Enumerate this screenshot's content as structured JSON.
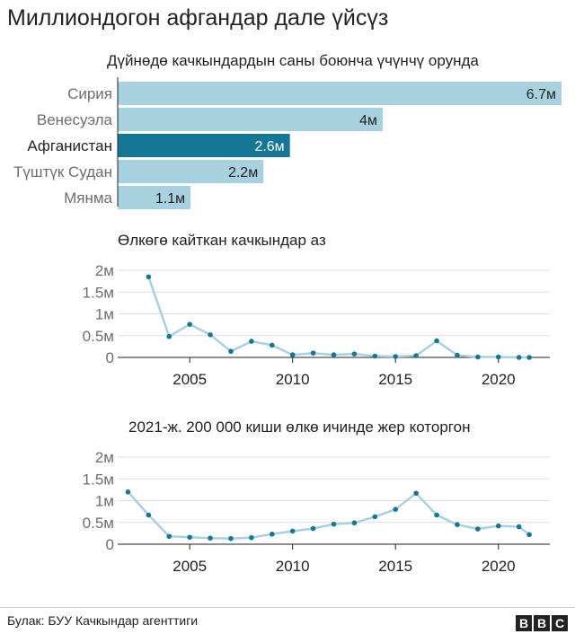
{
  "title": "Миллиондогон афгандар дале үйсүз",
  "source": "Булак: БУУ Качкындар агенттиги",
  "logo": [
    "B",
    "B",
    "C"
  ],
  "colors": {
    "bar": "#a8d1df",
    "highlight": "#157796",
    "line": "#a8d1df",
    "dot": "#157796",
    "axis": "#222222",
    "grid": "#dddddd",
    "label": "#6e6e6e"
  },
  "chart_data": [
    {
      "type": "bar",
      "title": "Дүйнөдө качкындардын саны боюнча үчүнчү орунда",
      "categories": [
        "Сирия",
        "Венесуэла",
        "Афганистан",
        "Түштүк Судан",
        "Мянма"
      ],
      "values": [
        6.7,
        4,
        2.6,
        2.2,
        1.1
      ],
      "value_labels": [
        "6.7м",
        "4м",
        "2.6м",
        "2.2м",
        "1.1м"
      ],
      "highlight": "Афганистан",
      "orientation": "horizontal",
      "xlim": [
        0,
        6.7
      ]
    },
    {
      "type": "line",
      "title": "Өлкөгө кайткан качкындар аз",
      "x": [
        2003,
        2004,
        2005,
        2006,
        2007,
        2008,
        2009,
        2010,
        2011,
        2012,
        2013,
        2014,
        2015,
        2016,
        2017,
        2018,
        2019,
        2020,
        2021,
        2021.5
      ],
      "y": [
        1.85,
        0.48,
        0.76,
        0.52,
        0.14,
        0.37,
        0.28,
        0.06,
        0.1,
        0.06,
        0.08,
        0.03,
        0.02,
        0.04,
        0.38,
        0.05,
        0.01,
        0.01,
        0.0,
        0.0
      ],
      "x_ticks": [
        2005,
        2010,
        2015,
        2020
      ],
      "y_ticks": [
        0,
        0.5,
        1,
        1.5,
        2
      ],
      "y_tick_labels": [
        "0",
        "0.5м",
        "1м",
        "1.5м",
        "2м"
      ],
      "xlim": [
        2001.5,
        2022.5
      ],
      "ylim": [
        0,
        2
      ],
      "grid": true
    },
    {
      "type": "line",
      "title": "2021-ж. 200 000 киши өлкө ичинде жер которгон",
      "x": [
        2002,
        2003,
        2004,
        2005,
        2006,
        2007,
        2008,
        2009,
        2010,
        2011,
        2012,
        2013,
        2014,
        2015,
        2016,
        2017,
        2018,
        2019,
        2020,
        2021,
        2021.5
      ],
      "y": [
        1.2,
        0.67,
        0.18,
        0.16,
        0.14,
        0.13,
        0.15,
        0.23,
        0.3,
        0.36,
        0.46,
        0.49,
        0.63,
        0.8,
        1.17,
        0.67,
        0.45,
        0.35,
        0.42,
        0.4,
        0.22
      ],
      "x_ticks": [
        2005,
        2010,
        2015,
        2020
      ],
      "y_ticks": [
        0,
        0.5,
        1,
        1.5,
        2
      ],
      "y_tick_labels": [
        "0",
        "0.5м",
        "1м",
        "1.5м",
        "2м"
      ],
      "xlim": [
        2001.5,
        2022.5
      ],
      "ylim": [
        0,
        2
      ],
      "grid": true
    }
  ]
}
